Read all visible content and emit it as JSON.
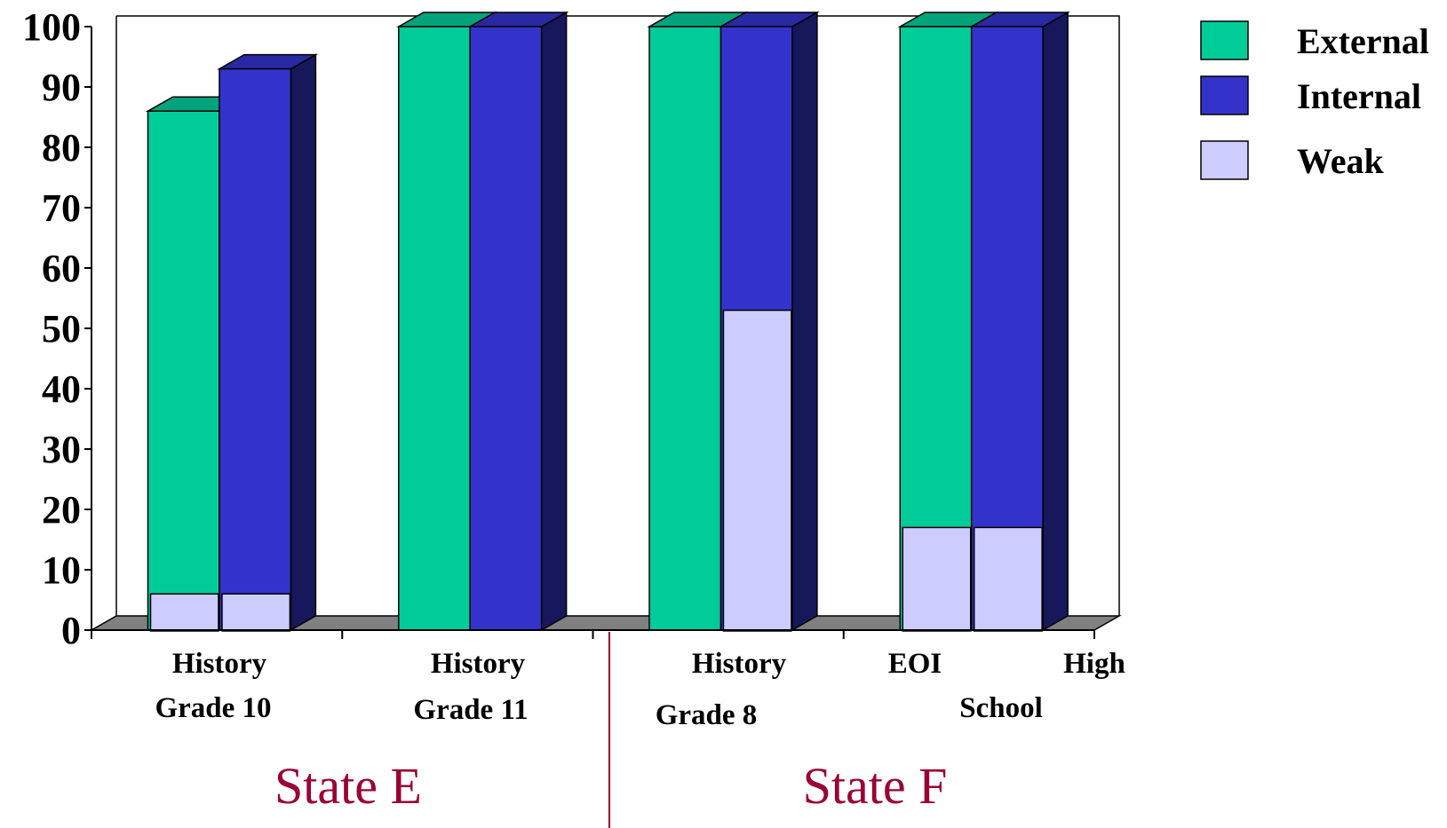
{
  "colors": {
    "External": "#00CC99",
    "Internal": "#3333CC",
    "Weak": "#CCCCFF",
    "floor": "#808080",
    "group_label": "#990033"
  },
  "chart_data": {
    "type": "bar",
    "variant": "3d-grouped-with-overlay",
    "ylim": [
      0,
      100
    ],
    "yticks": [
      0,
      10,
      20,
      30,
      40,
      50,
      60,
      70,
      80,
      90,
      100
    ],
    "grid": false,
    "legend_position": "top-right",
    "categories": [
      {
        "label_lines": [
          "History",
          "Grade 10"
        ]
      },
      {
        "label_lines": [
          "History",
          "Grade 11"
        ]
      },
      {
        "label_lines": [
          "History",
          "Grade 8"
        ]
      },
      {
        "label_lines": [
          "EOI",
          "High",
          "School"
        ]
      }
    ],
    "series": [
      {
        "name": "External",
        "values": [
          86,
          100,
          100,
          100
        ]
      },
      {
        "name": "Internal",
        "values": [
          93,
          100,
          100,
          100
        ]
      },
      {
        "name": "Weak",
        "overlay": true,
        "values_external": [
          6,
          0,
          0,
          17
        ],
        "values_internal": [
          6,
          0,
          53,
          17
        ]
      }
    ],
    "groups": [
      {
        "label": "State E",
        "categories": [
          0,
          1
        ]
      },
      {
        "label": "State F",
        "categories": [
          2,
          3
        ]
      }
    ]
  }
}
